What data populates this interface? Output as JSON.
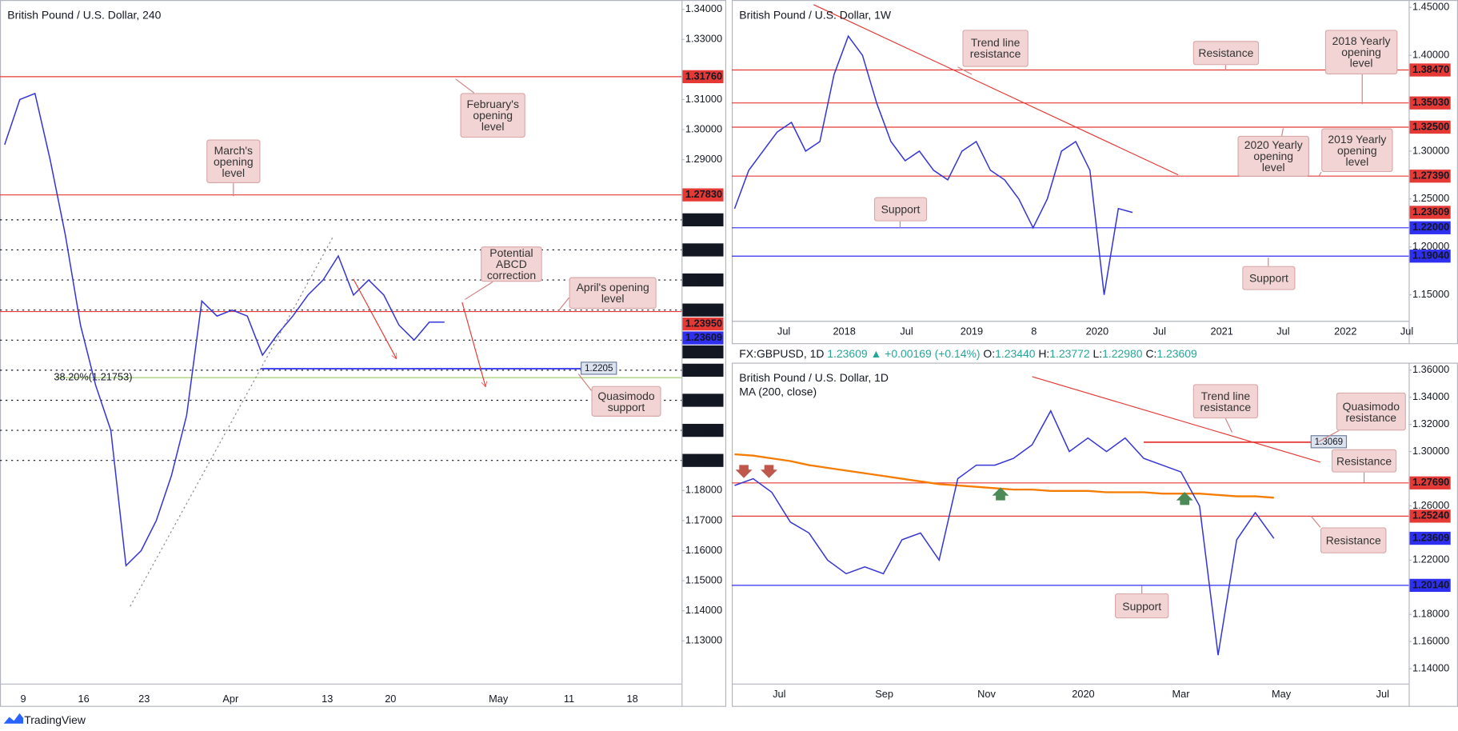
{
  "panels": [
    {
      "title": "British Pound / U.S. Dollar, 240",
      "ylim": [
        1.1158,
        1.3431
      ],
      "yticks": [
        {
          "value": 1.34,
          "label": "1.34000"
        },
        {
          "value": 1.33,
          "label": "1.33000"
        },
        {
          "value": 1.31,
          "label": "1.31000"
        },
        {
          "value": 1.3,
          "label": "1.30000"
        },
        {
          "value": 1.29,
          "label": "1.29000"
        },
        {
          "value": 1.18,
          "label": "1.18000"
        },
        {
          "value": 1.17,
          "label": "1.17000"
        },
        {
          "value": 1.16,
          "label": "1.16000"
        },
        {
          "value": 1.15,
          "label": "1.15000"
        },
        {
          "value": 1.14,
          "label": "1.14000"
        },
        {
          "value": 1.13,
          "label": "1.13000"
        }
      ],
      "xticks": [
        "9",
        "16",
        "23",
        "Apr",
        "13",
        "20",
        "May",
        "11",
        "18"
      ],
      "levels": [
        {
          "value": 1.3176,
          "label": "1.31760",
          "color": "#e53935",
          "style": "solid"
        },
        {
          "value": 1.2783,
          "label": "1.27830",
          "color": "#e53935",
          "style": "solid"
        },
        {
          "value": 1.27,
          "label": "1.27000",
          "color": "#131722",
          "style": "dotted"
        },
        {
          "value": 1.26,
          "label": "1.26000",
          "color": "#131722",
          "style": "dotted"
        },
        {
          "value": 1.25,
          "label": "1.25000",
          "color": "#131722",
          "style": "dotted"
        },
        {
          "value": 1.24,
          "label": "1.24000",
          "color": "#131722",
          "style": "dotted"
        },
        {
          "value": 1.2395,
          "label": "1.23950",
          "color": "#e53935",
          "style": "solid"
        },
        {
          "value": 1.23609,
          "label": "1.23609",
          "color": "#2f2ff0",
          "style": "none"
        },
        {
          "value": 1.23,
          "label": "1.23000",
          "color": "#131722",
          "style": "dotted"
        },
        {
          "value": 1.22,
          "label": "1.22000",
          "color": "#131722",
          "style": "dotted"
        },
        {
          "value": 1.21,
          "label": "1.21000",
          "color": "#131722",
          "style": "dotted"
        },
        {
          "value": 1.2,
          "label": "1.20000",
          "color": "#131722",
          "style": "dotted"
        },
        {
          "value": 1.19,
          "label": "1.19000",
          "color": "#131722",
          "style": "dotted"
        },
        {
          "value": 1.2205,
          "label": "1.2205",
          "color": "#2f2ff0",
          "style": "tag"
        },
        {
          "value": 1.21753,
          "label": "38.20%(1.21753)",
          "color": "#9ccc65",
          "style": "fib"
        }
      ],
      "annotations": [
        "February's opening level",
        "March's opening level",
        "Potential ABCD correction",
        "April's opening level",
        "Quasimodo support"
      ],
      "price_color": "#3535d8",
      "price": [
        1.295,
        1.31,
        1.312,
        1.29,
        1.265,
        1.235,
        1.215,
        1.2,
        1.155,
        1.16,
        1.17,
        1.185,
        1.205,
        1.243,
        1.238,
        1.24,
        1.238,
        1.225,
        1.232,
        1.238,
        1.245,
        1.25,
        1.258,
        1.245,
        1.25,
        1.245,
        1.235,
        1.23,
        1.236,
        1.236
      ]
    },
    {
      "title": "British Pound / U.S. Dollar, 1W",
      "ylim": [
        1.12282,
        1.45485
      ],
      "yticks": [
        {
          "value": 1.45,
          "label": "1.45000"
        },
        {
          "value": 1.4,
          "label": "1.40000"
        },
        {
          "value": 1.3,
          "label": "1.30000"
        },
        {
          "value": 1.25,
          "label": "1.25000"
        },
        {
          "value": 1.2,
          "label": "1.20000"
        },
        {
          "value": 1.15,
          "label": "1.15000"
        }
      ],
      "xticks": [
        "Jul",
        "2018",
        "Jul",
        "2019",
        "8",
        "2020",
        "Jul",
        "2021",
        "Jul",
        "2022",
        "Jul"
      ],
      "levels": [
        {
          "value": 1.3847,
          "label": "1.38470",
          "color": "#e53935",
          "style": "solid"
        },
        {
          "value": 1.3503,
          "label": "1.35030",
          "color": "#e53935",
          "style": "solid"
        },
        {
          "value": 1.325,
          "label": "1.32500",
          "color": "#e53935",
          "style": "solid"
        },
        {
          "value": 1.2739,
          "label": "1.27390",
          "color": "#e53935",
          "style": "solid"
        },
        {
          "value": 1.23609,
          "label": "1.23609",
          "color": "#e53935",
          "style": "none"
        },
        {
          "value": 1.22,
          "label": "1.22000",
          "color": "#2f2ff0",
          "style": "solid"
        },
        {
          "value": 1.1904,
          "label": "1.19040",
          "color": "#2f2ff0",
          "style": "solid"
        }
      ],
      "annotations": [
        "Trend line resistance",
        "Resistance",
        "2018 Yearly opening level",
        "2020 Yearly opening level",
        "2019 Yearly opening level",
        "Support",
        "Support"
      ],
      "price_color": "#3535d8",
      "price": [
        1.24,
        1.28,
        1.3,
        1.32,
        1.33,
        1.3,
        1.31,
        1.38,
        1.42,
        1.4,
        1.35,
        1.31,
        1.29,
        1.3,
        1.28,
        1.27,
        1.3,
        1.31,
        1.28,
        1.27,
        1.25,
        1.22,
        1.25,
        1.3,
        1.31,
        1.28,
        1.15,
        1.24,
        1.236
      ]
    },
    {
      "title": "British Pound / U.S. Dollar, 1D",
      "subtitle": "MA (200, close)",
      "ylim": [
        1.12902,
        1.36548
      ],
      "yticks": [
        {
          "value": 1.36,
          "label": "1.36000"
        },
        {
          "value": 1.34,
          "label": "1.34000"
        },
        {
          "value": 1.32,
          "label": "1.32000"
        },
        {
          "value": 1.3,
          "label": "1.30000"
        },
        {
          "value": 1.26,
          "label": "1.26000"
        },
        {
          "value": 1.22,
          "label": "1.22000"
        },
        {
          "value": 1.18,
          "label": "1.18000"
        },
        {
          "value": 1.16,
          "label": "1.16000"
        },
        {
          "value": 1.14,
          "label": "1.14000"
        }
      ],
      "xticks": [
        "Jul",
        "Sep",
        "Nov",
        "2020",
        "Mar",
        "May",
        "Jul"
      ],
      "levels": [
        {
          "value": 1.2769,
          "label": "1.27690",
          "color": "#e53935",
          "style": "solid"
        },
        {
          "value": 1.2524,
          "label": "1.25240",
          "color": "#e53935",
          "style": "solid"
        },
        {
          "value": 1.23609,
          "label": "1.23609",
          "color": "#2f2ff0",
          "style": "none"
        },
        {
          "value": 1.2014,
          "label": "1.20140",
          "color": "#2f2ff0",
          "style": "solid"
        },
        {
          "value": 1.3069,
          "label": "1.3069",
          "color": "#e53935",
          "style": "tag"
        }
      ],
      "annotations": [
        "Trend line resistance",
        "Quasimodo resistance",
        "Resistance",
        "Resistance",
        "Support"
      ],
      "price_color": "#3535d8",
      "price": [
        1.275,
        1.28,
        1.27,
        1.248,
        1.24,
        1.22,
        1.21,
        1.215,
        1.21,
        1.235,
        1.24,
        1.22,
        1.28,
        1.29,
        1.29,
        1.295,
        1.305,
        1.33,
        1.3,
        1.31,
        1.3,
        1.31,
        1.295,
        1.29,
        1.285,
        1.26,
        1.15,
        1.235,
        1.255,
        1.236
      ],
      "ma_color": "#f57c00",
      "ma": [
        1.298,
        1.297,
        1.295,
        1.293,
        1.29,
        1.288,
        1.286,
        1.284,
        1.282,
        1.28,
        1.278,
        1.276,
        1.275,
        1.274,
        1.273,
        1.272,
        1.272,
        1.271,
        1.271,
        1.271,
        1.27,
        1.27,
        1.27,
        1.269,
        1.269,
        1.269,
        1.268,
        1.267,
        1.267,
        1.266
      ]
    }
  ],
  "header": {
    "symbol": "FX:GBPUSD, 1D",
    "last": "1.23609",
    "change": "▲ +0.00169 (+0.14%)",
    "ohlc": [
      {
        "name": "O:",
        "value": "1.23440"
      },
      {
        "name": "H:",
        "value": "1.23772"
      },
      {
        "name": "L:",
        "value": "1.22980"
      },
      {
        "name": "C:",
        "value": "1.23609"
      }
    ]
  },
  "footer": "TradingView"
}
